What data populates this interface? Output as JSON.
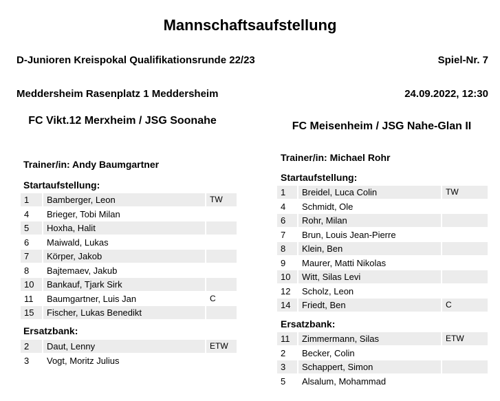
{
  "header": {
    "title": "Mannschaftsaufstellung",
    "competition": "D-Junioren Kreispokal Qualifikationsrunde 22/23",
    "game_no": "Spiel-Nr. 7",
    "venue": "Meddersheim Rasenplatz 1 Meddersheim",
    "datetime": "24.09.2022, 12:30"
  },
  "team1": {
    "name": "FC Vikt.12 Merxheim / JSG Soonahe",
    "trainer": "Trainer/in: Andy Baumgartner",
    "start_label": "Startaufstellung:",
    "bench_label": "Ersatzbank:",
    "start": [
      {
        "num": "1",
        "name": "Bamberger, Leon",
        "role": "TW"
      },
      {
        "num": "4",
        "name": "Brieger, Tobi Milan",
        "role": ""
      },
      {
        "num": "5",
        "name": "Hoxha, Halit",
        "role": ""
      },
      {
        "num": "6",
        "name": "Maiwald, Lukas",
        "role": ""
      },
      {
        "num": "7",
        "name": "Körper, Jakob",
        "role": ""
      },
      {
        "num": "8",
        "name": "Bajtemaev, Jakub",
        "role": ""
      },
      {
        "num": "10",
        "name": "Bankauf, Tjark Sirk",
        "role": ""
      },
      {
        "num": "11",
        "name": "Baumgartner, Luis Jan",
        "role": "C"
      },
      {
        "num": "15",
        "name": "Fischer, Lukas Benedikt",
        "role": ""
      }
    ],
    "bench": [
      {
        "num": "2",
        "name": "Daut, Lenny",
        "role": "ETW"
      },
      {
        "num": "3",
        "name": "Vogt, Moritz Julius",
        "role": ""
      }
    ]
  },
  "team2": {
    "name": "FC Meisenheim / JSG Nahe-Glan II",
    "trainer": "Trainer/in: Michael Rohr",
    "start_label": "Startaufstellung:",
    "bench_label": "Ersatzbank:",
    "start": [
      {
        "num": "1",
        "name": "Breidel, Luca Colin",
        "role": "TW"
      },
      {
        "num": "4",
        "name": "Schmidt, Ole",
        "role": ""
      },
      {
        "num": "6",
        "name": "Rohr, Milan",
        "role": ""
      },
      {
        "num": "7",
        "name": "Brun, Louis Jean-Pierre",
        "role": ""
      },
      {
        "num": "8",
        "name": "Klein, Ben",
        "role": ""
      },
      {
        "num": "9",
        "name": "Maurer, Matti Nikolas",
        "role": ""
      },
      {
        "num": "10",
        "name": "Witt, Silas Levi",
        "role": ""
      },
      {
        "num": "12",
        "name": "Scholz, Leon",
        "role": ""
      },
      {
        "num": "14",
        "name": "Friedt, Ben",
        "role": "C"
      }
    ],
    "bench": [
      {
        "num": "11",
        "name": "Zimmermann, Silas",
        "role": "ETW"
      },
      {
        "num": "2",
        "name": "Becker, Colin",
        "role": ""
      },
      {
        "num": "3",
        "name": "Schappert, Simon",
        "role": ""
      },
      {
        "num": "5",
        "name": "Alsalum, Mohammad",
        "role": ""
      }
    ]
  }
}
